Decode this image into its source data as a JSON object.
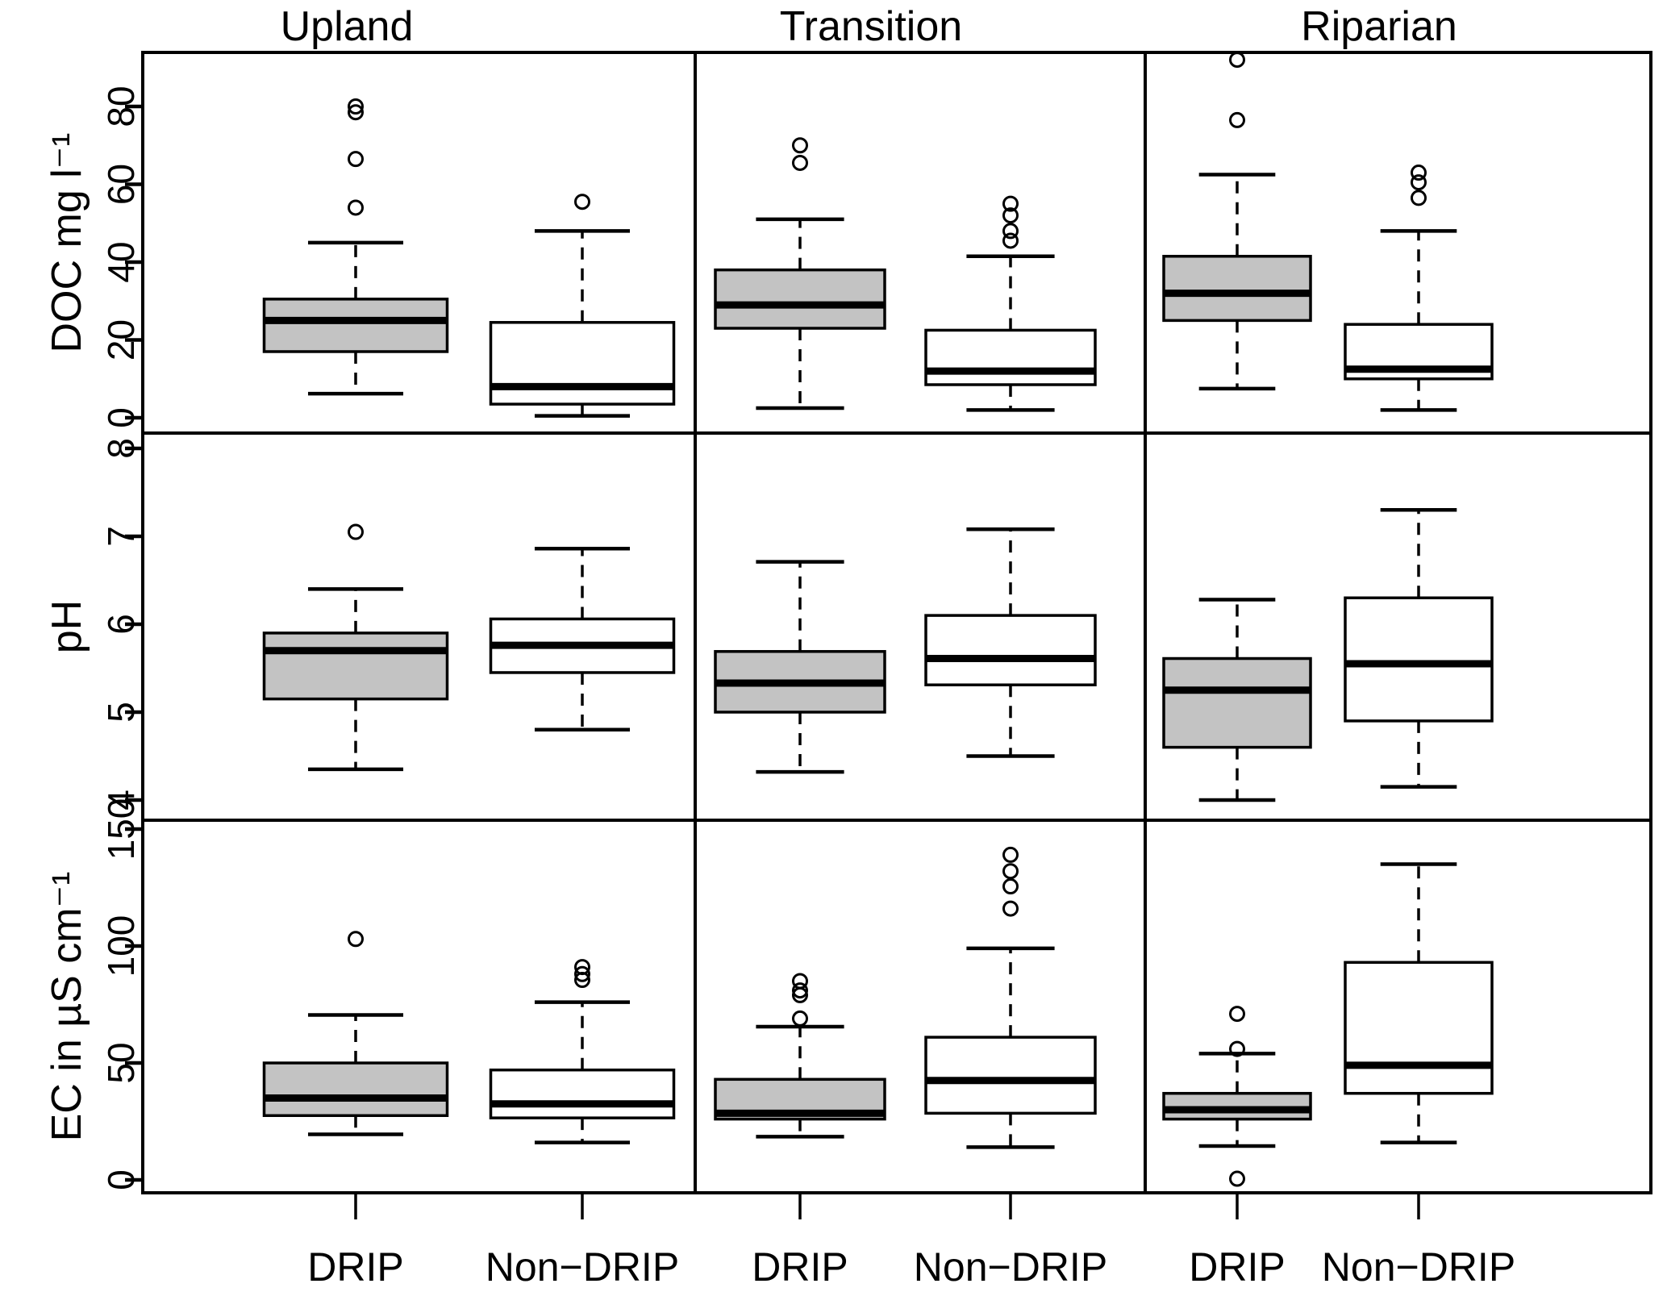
{
  "chart_data": {
    "type": "boxplot",
    "layout": "3x3-lattice",
    "column_titles": [
      "Upland",
      "Transition",
      "Riparian"
    ],
    "group_labels": [
      "DRIP",
      "Non−DRIP"
    ],
    "grid": false,
    "colors": {
      "drip_fill": "#c3c3c3",
      "nondrip_fill": "#ffffff",
      "stroke": "#000000",
      "background": "#ffffff"
    },
    "rows": [
      {
        "ylabel": "DOC mg l⁻¹",
        "yticks": [
          0,
          20,
          40,
          60,
          80
        ],
        "ylim": [
          -4,
          94
        ],
        "panels": [
          {
            "column": "Upland",
            "boxes": [
              {
                "group": "DRIP",
                "low": 6.2,
                "q1": 17,
                "median": 25,
                "q3": 30.5,
                "high": 45,
                "outliers": [
                  80,
                  78.5,
                  66.5,
                  54
                ]
              },
              {
                "group": "Non-DRIP",
                "low": 0.5,
                "q1": 3.5,
                "median": 8,
                "q3": 24.5,
                "high": 48,
                "outliers": [
                  55.5
                ]
              }
            ]
          },
          {
            "column": "Transition",
            "boxes": [
              {
                "group": "DRIP",
                "low": 2.5,
                "q1": 23,
                "median": 29,
                "q3": 38,
                "high": 51,
                "outliers": [
                  70,
                  65.5
                ]
              },
              {
                "group": "Non-DRIP",
                "low": 2,
                "q1": 8.5,
                "median": 12,
                "q3": 22.5,
                "high": 41.5,
                "outliers": [
                  55,
                  52,
                  48,
                  45.5
                ]
              }
            ]
          },
          {
            "column": "Riparian",
            "boxes": [
              {
                "group": "DRIP",
                "low": 7.5,
                "q1": 25,
                "median": 32,
                "q3": 41.5,
                "high": 62.5,
                "outliers": [
                  92,
                  76.5
                ]
              },
              {
                "group": "Non-DRIP",
                "low": 2,
                "q1": 10,
                "median": 12.5,
                "q3": 24,
                "high": 48,
                "outliers": [
                  63,
                  60.5,
                  56.5
                ]
              }
            ]
          }
        ]
      },
      {
        "ylabel": "pH",
        "yticks": [
          4,
          5,
          6,
          7,
          8
        ],
        "ylim": [
          3.77,
          8.18
        ],
        "panels": [
          {
            "column": "Upland",
            "boxes": [
              {
                "group": "DRIP",
                "low": 4.35,
                "q1": 5.15,
                "median": 5.7,
                "q3": 5.9,
                "high": 6.4,
                "outliers": [
                  7.05
                ]
              },
              {
                "group": "Non-DRIP",
                "low": 4.8,
                "q1": 5.45,
                "median": 5.76,
                "q3": 6.06,
                "high": 6.86,
                "outliers": []
              }
            ]
          },
          {
            "column": "Transition",
            "boxes": [
              {
                "group": "DRIP",
                "low": 4.32,
                "q1": 5.0,
                "median": 5.33,
                "q3": 5.69,
                "high": 6.71,
                "outliers": []
              },
              {
                "group": "Non-DRIP",
                "low": 4.5,
                "q1": 5.31,
                "median": 5.61,
                "q3": 6.1,
                "high": 7.08,
                "outliers": []
              }
            ]
          },
          {
            "column": "Riparian",
            "boxes": [
              {
                "group": "DRIP",
                "low": 4.0,
                "q1": 4.6,
                "median": 5.25,
                "q3": 5.61,
                "high": 6.28,
                "outliers": []
              },
              {
                "group": "Non-DRIP",
                "low": 4.15,
                "q1": 4.9,
                "median": 5.55,
                "q3": 6.3,
                "high": 7.3,
                "outliers": []
              }
            ]
          }
        ]
      },
      {
        "ylabel": "EC in µS cm⁻¹",
        "yticks": [
          0,
          50,
          100,
          150
        ],
        "ylim": [
          -5.5,
          154
        ],
        "panels": [
          {
            "column": "Upland",
            "boxes": [
              {
                "group": "DRIP",
                "low": 19.5,
                "q1": 27.5,
                "median": 35,
                "q3": 50,
                "high": 70.5,
                "outliers": [
                  103
                ]
              },
              {
                "group": "Non-DRIP",
                "low": 16,
                "q1": 26.5,
                "median": 32.5,
                "q3": 47,
                "high": 76,
                "outliers": [
                  91,
                  88,
                  85.5
                ]
              }
            ]
          },
          {
            "column": "Transition",
            "boxes": [
              {
                "group": "DRIP",
                "low": 18.5,
                "q1": 26,
                "median": 28.5,
                "q3": 43,
                "high": 65.5,
                "outliers": [
                  85,
                  81,
                  79,
                  69
                ]
              },
              {
                "group": "Non-DRIP",
                "low": 14,
                "q1": 28.5,
                "median": 42.5,
                "q3": 61,
                "high": 99,
                "outliers": [
                  139,
                  132,
                  125.5,
                  116
                ]
              }
            ]
          },
          {
            "column": "Riparian",
            "boxes": [
              {
                "group": "DRIP",
                "low": 14.5,
                "q1": 26,
                "median": 30,
                "q3": 37,
                "high": 54,
                "outliers": [
                  71,
                  56,
                  0.5
                ]
              },
              {
                "group": "Non-DRIP",
                "low": 16,
                "q1": 37,
                "median": 49,
                "q3": 93,
                "high": 135,
                "outliers": []
              }
            ]
          }
        ]
      }
    ]
  }
}
